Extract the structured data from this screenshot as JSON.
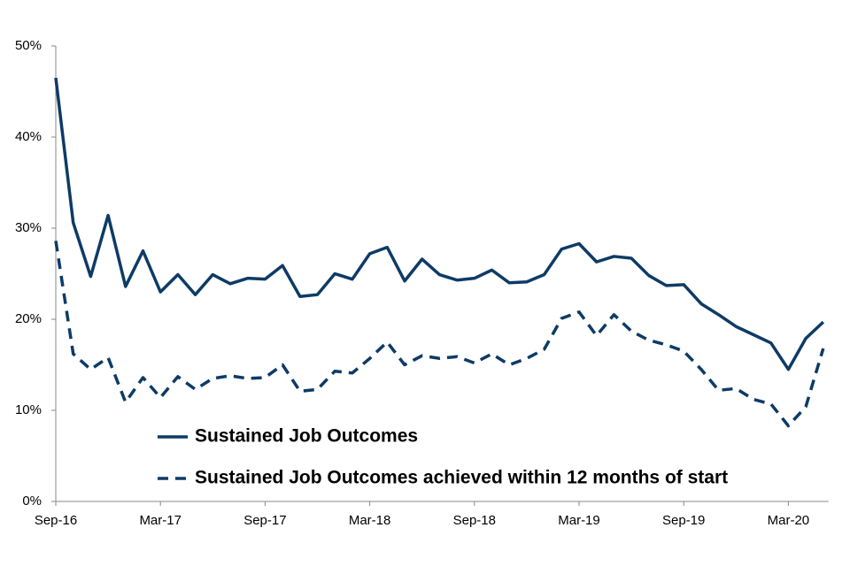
{
  "chart_data": {
    "type": "line",
    "categories": [
      "Sep-16",
      null,
      null,
      null,
      null,
      null,
      "Mar-17",
      null,
      null,
      null,
      null,
      null,
      "Sep-17",
      null,
      null,
      null,
      null,
      null,
      "Mar-18",
      null,
      null,
      null,
      null,
      null,
      "Sep-18",
      null,
      null,
      null,
      null,
      null,
      "Mar-19",
      null,
      null,
      null,
      null,
      null,
      "Sep-19",
      null,
      null,
      null,
      null,
      null,
      "Mar-20",
      null,
      null
    ],
    "series": [
      {
        "name": "Sustained Job Outcomes",
        "color": "#0d3b66",
        "dash": false,
        "values": [
          46.5,
          30.6,
          24.7,
          31.4,
          23.6,
          27.5,
          23.0,
          24.9,
          22.7,
          24.9,
          23.9,
          24.5,
          24.4,
          25.9,
          22.5,
          22.7,
          25.0,
          24.4,
          27.2,
          27.9,
          24.2,
          26.6,
          24.9,
          24.3,
          24.5,
          25.4,
          24.0,
          24.1,
          24.9,
          27.7,
          28.3,
          26.3,
          26.9,
          26.7,
          24.8,
          23.7,
          23.8,
          21.7,
          20.5,
          19.2,
          18.3,
          17.4,
          14.5,
          17.9,
          19.7
        ]
      },
      {
        "name": "Sustained Job Outcomes achieved within 12 months of start",
        "color": "#0d3b66",
        "dash": true,
        "values": [
          28.6,
          16.2,
          14.5,
          15.8,
          10.9,
          13.6,
          11.4,
          13.7,
          12.3,
          13.5,
          13.8,
          13.5,
          13.6,
          15.0,
          12.1,
          12.3,
          14.3,
          14.1,
          15.7,
          17.5,
          15.0,
          16.0,
          15.7,
          15.9,
          15.2,
          16.2,
          15.0,
          15.7,
          16.7,
          20.1,
          20.8,
          18.2,
          20.5,
          18.7,
          17.7,
          17.2,
          16.5,
          14.5,
          12.2,
          12.4,
          11.2,
          10.7,
          8.3,
          10.4,
          16.8
        ]
      }
    ],
    "ylim": [
      0,
      50
    ],
    "yticks": [
      {
        "value": 0,
        "label": "0%"
      },
      {
        "value": 10,
        "label": "10%"
      },
      {
        "value": 20,
        "label": "20%"
      },
      {
        "value": 30,
        "label": "30%"
      },
      {
        "value": 40,
        "label": "40%"
      },
      {
        "value": 50,
        "label": "50%"
      }
    ],
    "grid": false,
    "legend": "bottom"
  }
}
